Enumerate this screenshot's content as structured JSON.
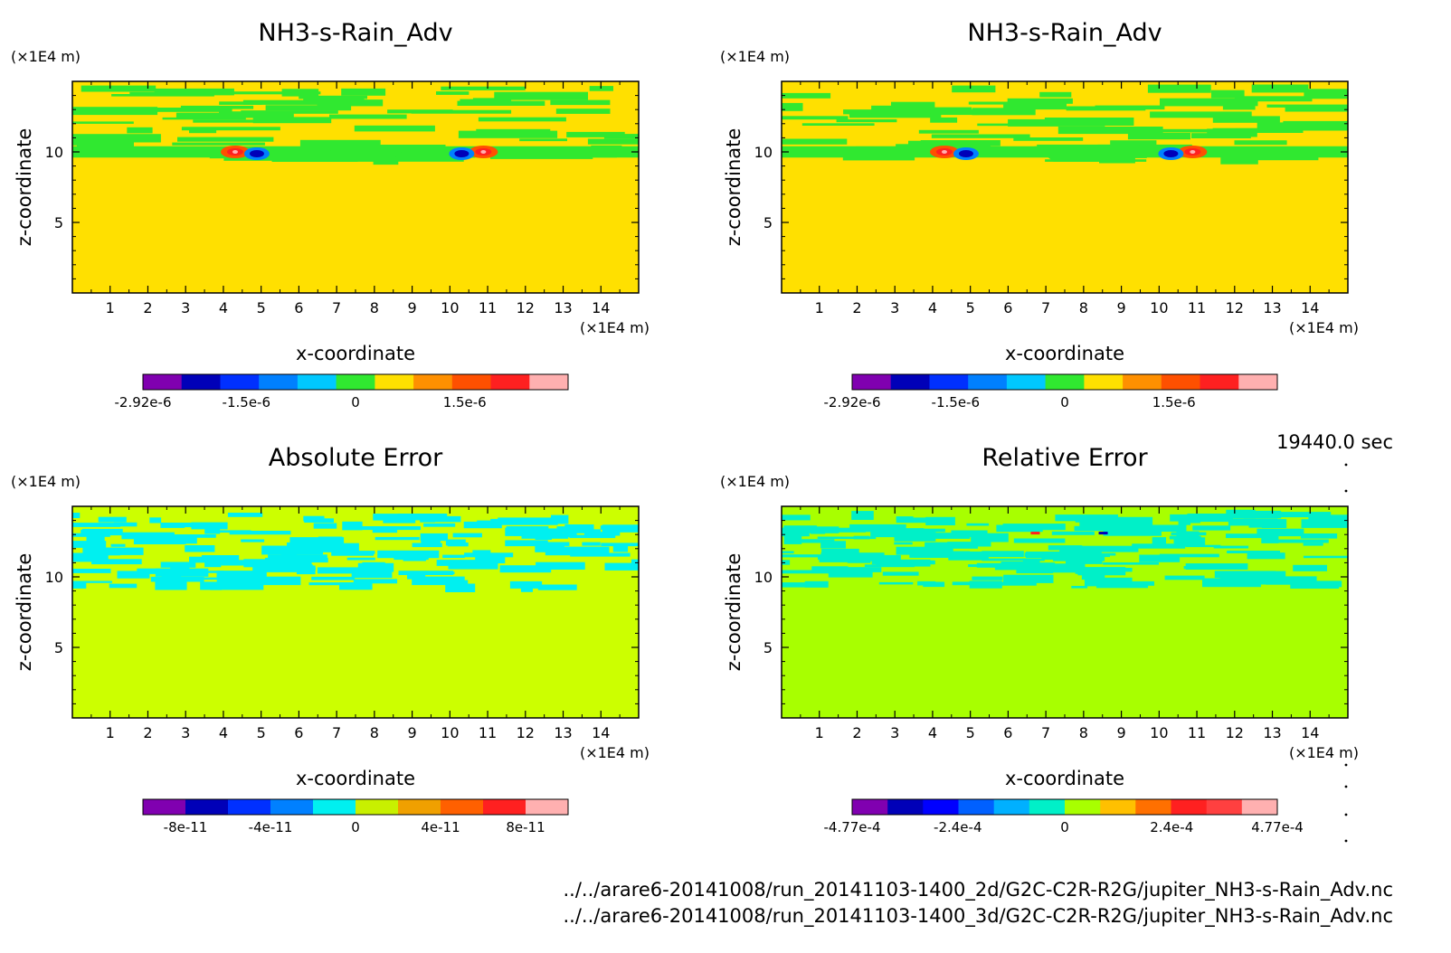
{
  "chart_data": [
    {
      "type": "heatmap",
      "title": "NH3-s-Rain_Adv",
      "xlabel": "x-coordinate",
      "ylabel": "z-coordinate",
      "x_unit": "(×1E4 m)",
      "y_unit": "(×1E4 m)",
      "xlim": [
        0,
        15
      ],
      "ylim": [
        0,
        15
      ],
      "x_ticks": [
        "1",
        "2",
        "3",
        "4",
        "5",
        "6",
        "7",
        "8",
        "9",
        "10",
        "11",
        "12",
        "13",
        "14"
      ],
      "y_ticks": [
        "5",
        "10"
      ],
      "colorbar": {
        "colors": [
          "#8000b0",
          "#0000b8",
          "#0030ff",
          "#0080ff",
          "#00c8ff",
          "#30e830",
          "#ffe000",
          "#ff9000",
          "#ff5000",
          "#ff2020",
          "#ffb0b0"
        ],
        "tick_labels": [
          "-2.92e-6",
          "-1.5e-6",
          "0",
          "1.5e-6"
        ],
        "range": [
          -2.92e-06,
          2.92e-06
        ]
      },
      "background_color": "#ffe000",
      "band_color": "#30e830",
      "features": [
        {
          "x": 4.6,
          "z": 10.0,
          "value": "dipole"
        },
        {
          "x": 10.6,
          "z": 10.0,
          "value": "dipole"
        }
      ]
    },
    {
      "type": "heatmap",
      "title": "NH3-s-Rain_Adv",
      "xlabel": "x-coordinate",
      "ylabel": "z-coordinate",
      "x_unit": "(×1E4 m)",
      "y_unit": "(×1E4 m)",
      "xlim": [
        0,
        15
      ],
      "ylim": [
        0,
        15
      ],
      "x_ticks": [
        "1",
        "2",
        "3",
        "4",
        "5",
        "6",
        "7",
        "8",
        "9",
        "10",
        "11",
        "12",
        "13",
        "14"
      ],
      "y_ticks": [
        "5",
        "10"
      ],
      "colorbar": {
        "colors": [
          "#8000b0",
          "#0000b8",
          "#0030ff",
          "#0080ff",
          "#00c8ff",
          "#30e830",
          "#ffe000",
          "#ff9000",
          "#ff5000",
          "#ff2020",
          "#ffb0b0"
        ],
        "tick_labels": [
          "-2.92e-6",
          "-1.5e-6",
          "0",
          "1.5e-6"
        ],
        "range": [
          -2.92e-06,
          2.92e-06
        ]
      },
      "background_color": "#ffe000",
      "band_color": "#30e830",
      "features": [
        {
          "x": 4.6,
          "z": 10.0,
          "value": "dipole"
        },
        {
          "x": 10.6,
          "z": 10.0,
          "value": "dipole"
        }
      ]
    },
    {
      "type": "heatmap",
      "title": "Absolute Error",
      "xlabel": "x-coordinate",
      "ylabel": "z-coordinate",
      "x_unit": "(×1E4 m)",
      "y_unit": "(×1E4 m)",
      "xlim": [
        0,
        15
      ],
      "ylim": [
        0,
        15
      ],
      "x_ticks": [
        "1",
        "2",
        "3",
        "4",
        "5",
        "6",
        "7",
        "8",
        "9",
        "10",
        "11",
        "12",
        "13",
        "14"
      ],
      "y_ticks": [
        "5",
        "10"
      ],
      "colorbar": {
        "colors": [
          "#8000b0",
          "#0000b8",
          "#0030ff",
          "#0080ff",
          "#00f0f0",
          "#c8f000",
          "#f0a000",
          "#ff6000",
          "#ff2020",
          "#ffb0b0"
        ],
        "tick_labels": [
          "-8e-11",
          "-4e-11",
          "0",
          "4e-11",
          "8e-11"
        ],
        "range": [
          -1e-10,
          1e-10
        ]
      },
      "background_color": "#ccff00",
      "band_color": "#00f0f0"
    },
    {
      "type": "heatmap",
      "title": "Relative Error",
      "xlabel": "x-coordinate",
      "ylabel": "z-coordinate",
      "x_unit": "(×1E4 m)",
      "y_unit": "(×1E4 m)",
      "xlim": [
        0,
        15
      ],
      "ylim": [
        0,
        15
      ],
      "x_ticks": [
        "1",
        "2",
        "3",
        "4",
        "5",
        "6",
        "7",
        "8",
        "9",
        "10",
        "11",
        "12",
        "13",
        "14"
      ],
      "y_ticks": [
        "5",
        "10"
      ],
      "colorbar": {
        "colors": [
          "#8000b0",
          "#0000b8",
          "#0000ff",
          "#0060ff",
          "#00b0ff",
          "#00f0c8",
          "#a8ff00",
          "#ffc000",
          "#ff7000",
          "#ff2020",
          "#ff4040",
          "#ffb0b0"
        ],
        "tick_labels": [
          "-4.77e-4",
          "-2.4e-4",
          "0",
          "2.4e-4",
          "4.77e-4"
        ],
        "range": [
          -0.000477,
          0.000477
        ]
      },
      "background_color": "#a8ff00",
      "band_color": "#00f0c8"
    }
  ],
  "time_label": "19440.0 sec",
  "file_paths": [
    "../../arare6-20141008/run_20141103-1400_2d/G2C-C2R-R2G/jupiter_NH3-s-Rain_Adv.nc",
    "../../arare6-20141008/run_20141103-1400_3d/G2C-C2R-R2G/jupiter_NH3-s-Rain_Adv.nc"
  ]
}
